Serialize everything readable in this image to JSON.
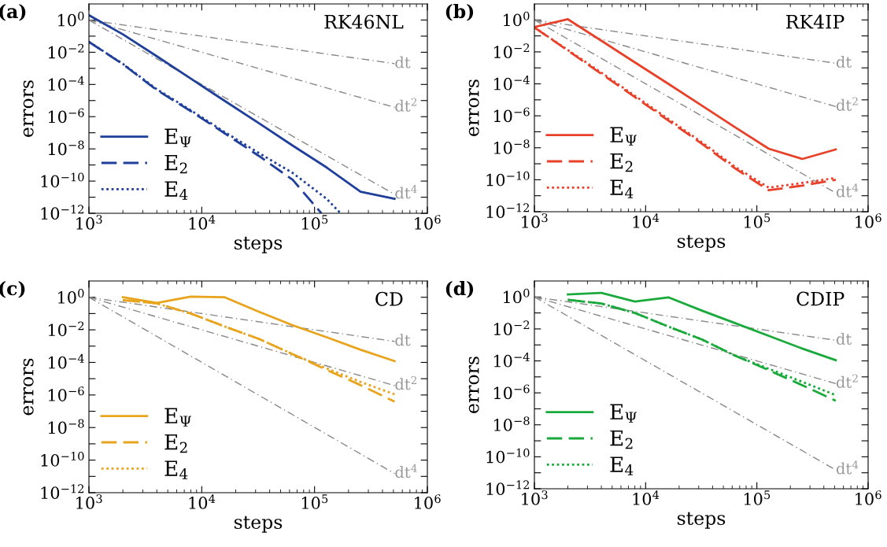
{
  "chart_data": [
    {
      "type": "line",
      "log": "xy",
      "xlabel": "steps",
      "ylabel": "errors",
      "legend": "bottom left",
      "grid": false,
      "xlim": [
        1000,
        1000000
      ],
      "xticks": [
        {
          "value": 1000,
          "label": "10$^{3}$"
        },
        {
          "value": 10000,
          "label": "10$^{4}$"
        },
        {
          "value": 100000,
          "label": "10$^{5}$"
        },
        {
          "value": 1000000,
          "label": "10$^{6}$"
        }
      ],
      "ylim": [
        1e-12,
        10
      ],
      "yticks": [
        {
          "value": 1e-12,
          "label": "10$^{−12}$"
        },
        {
          "value": 1e-11,
          "label": null
        },
        {
          "value": 1e-10,
          "label": "10$^{−10}$"
        },
        {
          "value": 1e-09,
          "label": null
        },
        {
          "value": 1e-08,
          "label": "10$^{−8}$"
        },
        {
          "value": 1e-07,
          "label": null
        },
        {
          "value": 1e-06,
          "label": "10$^{−6}$"
        },
        {
          "value": 1e-05,
          "label": null
        },
        {
          "value": 0.0001,
          "label": "10$^{−4}$"
        },
        {
          "value": 0.001,
          "label": null
        },
        {
          "value": 0.01,
          "label": "10$^{−2}$"
        },
        {
          "value": 0.1,
          "label": null
        },
        {
          "value": 1,
          "label": "10$^{0}$"
        }
      ],
      "x": [
        1000,
        2000,
        4000,
        8000,
        16000,
        32000,
        64000,
        128000,
        256000,
        512000
      ],
      "series": [
        {
          "color": "#888888",
          "line_style": "dashdot",
          "x": [
            1000,
            512000
          ],
          "values": [
            1,
            0.00195
          ]
        },
        {
          "color": "#888888",
          "line_style": "dashdot",
          "x": [
            1000,
            512000
          ],
          "values": [
            1,
            3.8e-06
          ]
        },
        {
          "color": "#888888",
          "line_style": "dashdot",
          "x": [
            1000,
            512000
          ],
          "values": [
            1,
            1.5e-11
          ]
        },
        {
          "name": "E$_{Ψ}$",
          "color": "#1f3f9b",
          "line_style": "solid",
          "values": [
            2,
            0.13,
            0.0056,
            0.00023,
            9.5e-06,
            4e-07,
            1.6e-08,
            7e-10,
            2.2e-11,
            8e-12
          ]
        },
        {
          "name": "E$_{2}$",
          "color": "#1f3f9b",
          "line_style": "dashed",
          "x": [
            1000,
            2000,
            4000,
            8000,
            16000,
            32000,
            64000,
            115000
          ],
          "values": [
            0.044,
            0.0018,
            4.5e-05,
            2.2e-06,
            9.1e-08,
            3.7e-09,
            1.2e-10,
            1e-12
          ]
        },
        {
          "name": "E$_{4}$",
          "color": "#1f3f9b",
          "line_style": "dotted",
          "x": [
            1000,
            2000,
            4000,
            8000,
            16000,
            32000,
            64000,
            128000,
            170000
          ],
          "values": [
            0.044,
            0.0019,
            5e-05,
            2.5e-06,
            1.1e-07,
            5.6e-09,
            3.2e-10,
            7.9e-12,
            1e-12
          ]
        }
      ],
      "annotations": [
        "(a)",
        "RK46NL",
        "dt",
        "dt$^{2}$",
        "dt$^{4}$"
      ]
    },
    {
      "type": "line",
      "log": "xy",
      "xlabel": "steps",
      "ylabel": "errors",
      "legend": "bottom left",
      "grid": false,
      "xlim": [
        1000,
        1000000
      ],
      "xticks": [
        {
          "value": 1000,
          "label": "10$^{3}$"
        },
        {
          "value": 10000,
          "label": "10$^{4}$"
        },
        {
          "value": 100000,
          "label": "10$^{5}$"
        },
        {
          "value": 1000000,
          "label": "10$^{6}$"
        }
      ],
      "ylim": [
        1e-12,
        10
      ],
      "yticks": [
        {
          "value": 1e-12,
          "label": "10$^{−12}$"
        },
        {
          "value": 1e-11,
          "label": null
        },
        {
          "value": 1e-10,
          "label": "10$^{−10}$"
        },
        {
          "value": 1e-09,
          "label": null
        },
        {
          "value": 1e-08,
          "label": "10$^{−8}$"
        },
        {
          "value": 1e-07,
          "label": null
        },
        {
          "value": 1e-06,
          "label": "10$^{−6}$"
        },
        {
          "value": 1e-05,
          "label": null
        },
        {
          "value": 0.0001,
          "label": "10$^{−4}$"
        },
        {
          "value": 0.001,
          "label": null
        },
        {
          "value": 0.01,
          "label": "10$^{−2}$"
        },
        {
          "value": 0.1,
          "label": null
        },
        {
          "value": 1,
          "label": "10$^{0}$"
        }
      ],
      "x": [
        1000,
        2000,
        4000,
        8000,
        16000,
        32000,
        64000,
        128000,
        256000,
        512000
      ],
      "series": [
        {
          "color": "#888888",
          "line_style": "dashdot",
          "x": [
            1000,
            512000
          ],
          "values": [
            1,
            0.00195
          ]
        },
        {
          "color": "#888888",
          "line_style": "dashdot",
          "x": [
            1000,
            512000
          ],
          "values": [
            1,
            3.8e-06
          ]
        },
        {
          "color": "#888888",
          "line_style": "dashdot",
          "x": [
            1000,
            512000
          ],
          "values": [
            1,
            1.5e-11
          ]
        },
        {
          "name": "E$_{Ψ}$",
          "color": "#e8412a",
          "line_style": "solid",
          "values": [
            0.36,
            1.1,
            0.05,
            0.0022,
            0.0001,
            4.4e-06,
            1.9e-07,
            8.7e-09,
            2e-09,
            7.9e-09
          ]
        },
        {
          "name": "E$_{2}$",
          "color": "#e8412a",
          "line_style": "dashed",
          "values": [
            0.34,
            0.012,
            0.00042,
            1.5e-05,
            5.1e-07,
            1.8e-08,
            5e-10,
            2.2e-11,
            4.3e-11,
            1e-10
          ]
        },
        {
          "name": "E$_{4}$",
          "color": "#e8412a",
          "line_style": "dotted",
          "values": [
            0.34,
            0.013,
            0.0005,
            1.8e-05,
            6.3e-07,
            2.2e-08,
            6.3e-10,
            3.2e-11,
            6.3e-11,
            1.3e-10
          ]
        }
      ],
      "annotations": [
        "(b)",
        "RK4IP",
        "dt",
        "dt$^{2}$",
        "dt$^{4}$"
      ]
    },
    {
      "type": "line",
      "log": "xy",
      "xlabel": "steps",
      "ylabel": "errors",
      "legend": "bottom left",
      "grid": false,
      "xlim": [
        1000,
        1000000
      ],
      "xticks": [
        {
          "value": 1000,
          "label": "10$^{3}$"
        },
        {
          "value": 10000,
          "label": "10$^{4}$"
        },
        {
          "value": 100000,
          "label": "10$^{5}$"
        },
        {
          "value": 1000000,
          "label": "10$^{6}$"
        }
      ],
      "ylim": [
        1e-12,
        10
      ],
      "yticks": [
        {
          "value": 1e-12,
          "label": "10$^{−12}$"
        },
        {
          "value": 1e-11,
          "label": null
        },
        {
          "value": 1e-10,
          "label": "10$^{−10}$"
        },
        {
          "value": 1e-09,
          "label": null
        },
        {
          "value": 1e-08,
          "label": "10$^{−8}$"
        },
        {
          "value": 1e-07,
          "label": null
        },
        {
          "value": 1e-06,
          "label": "10$^{−6}$"
        },
        {
          "value": 1e-05,
          "label": null
        },
        {
          "value": 0.0001,
          "label": "10$^{−4}$"
        },
        {
          "value": 0.001,
          "label": null
        },
        {
          "value": 0.01,
          "label": "10$^{−2}$"
        },
        {
          "value": 0.1,
          "label": null
        },
        {
          "value": 1,
          "label": "10$^{0}$"
        }
      ],
      "x": [
        2000,
        4000,
        8000,
        16000,
        32000,
        64000,
        128000,
        256000,
        512000
      ],
      "series": [
        {
          "color": "#888888",
          "line_style": "dashdot",
          "x": [
            1000,
            512000
          ],
          "values": [
            1,
            0.00195
          ]
        },
        {
          "color": "#888888",
          "line_style": "dashdot",
          "x": [
            1000,
            512000
          ],
          "values": [
            1,
            3.8e-06
          ]
        },
        {
          "color": "#888888",
          "line_style": "dashdot",
          "x": [
            1000,
            512000
          ],
          "values": [
            1,
            1.5e-11
          ]
        },
        {
          "name": "E$_{Ψ}$",
          "color": "#e8a41c",
          "line_style": "solid",
          "values": [
            1.0,
            0.45,
            1.1,
            1.0,
            0.13,
            0.019,
            0.0035,
            0.0006,
            0.00012
          ]
        },
        {
          "name": "E$_{2}$",
          "color": "#e8a41c",
          "line_style": "dashed",
          "values": [
            0.67,
            0.42,
            0.1,
            0.016,
            0.0028,
            0.00032,
            3.5e-05,
            4e-06,
            3.9e-07
          ]
        },
        {
          "name": "E$_{4}$",
          "color": "#e8a41c",
          "line_style": "dotted",
          "values": [
            0.67,
            0.42,
            0.1,
            0.016,
            0.0028,
            0.00032,
            4.3e-05,
            6.3e-06,
            1.1e-06
          ]
        }
      ],
      "annotations": [
        "(c)",
        "CD",
        "dt",
        "dt$^{2}$",
        "dt$^{4}$"
      ]
    },
    {
      "type": "line",
      "log": "xy",
      "xlabel": "steps",
      "ylabel": "errors",
      "legend": "bottom left",
      "grid": false,
      "xlim": [
        1000,
        1000000
      ],
      "xticks": [
        {
          "value": 1000,
          "label": "10$^{3}$"
        },
        {
          "value": 10000,
          "label": "10$^{4}$"
        },
        {
          "value": 100000,
          "label": "10$^{5}$"
        },
        {
          "value": 1000000,
          "label": "10$^{6}$"
        }
      ],
      "ylim": [
        1e-12,
        10
      ],
      "yticks": [
        {
          "value": 1e-12,
          "label": "10$^{−12}$"
        },
        {
          "value": 1e-11,
          "label": null
        },
        {
          "value": 1e-10,
          "label": "10$^{−10}$"
        },
        {
          "value": 1e-09,
          "label": null
        },
        {
          "value": 1e-08,
          "label": "10$^{−8}$"
        },
        {
          "value": 1e-07,
          "label": null
        },
        {
          "value": 1e-06,
          "label": "10$^{−6}$"
        },
        {
          "value": 1e-05,
          "label": null
        },
        {
          "value": 0.0001,
          "label": "10$^{−4}$"
        },
        {
          "value": 0.001,
          "label": null
        },
        {
          "value": 0.01,
          "label": "10$^{−2}$"
        },
        {
          "value": 0.1,
          "label": null
        },
        {
          "value": 1,
          "label": "10$^{0}$"
        }
      ],
      "x": [
        2000,
        4000,
        8000,
        16000,
        32000,
        64000,
        128000,
        256000,
        512000
      ],
      "series": [
        {
          "color": "#888888",
          "line_style": "dashdot",
          "x": [
            1000,
            512000
          ],
          "values": [
            1,
            0.00195
          ]
        },
        {
          "color": "#888888",
          "line_style": "dashdot",
          "x": [
            1000,
            512000
          ],
          "values": [
            1,
            3.8e-06
          ]
        },
        {
          "color": "#888888",
          "line_style": "dashdot",
          "x": [
            1000,
            512000
          ],
          "values": [
            1,
            1.5e-11
          ]
        },
        {
          "name": "E$_{Ψ}$",
          "color": "#1aaa3c",
          "line_style": "solid",
          "values": [
            1.45,
            1.8,
            0.52,
            0.95,
            0.14,
            0.023,
            0.0037,
            0.00059,
            0.00011
          ]
        },
        {
          "name": "E$_{2}$",
          "color": "#1aaa3c",
          "line_style": "dashed",
          "values": [
            0.66,
            0.39,
            0.1,
            0.014,
            0.0022,
            0.00021,
            2.6e-05,
            3e-06,
            3.2e-07
          ]
        },
        {
          "name": "E$_{4}$",
          "color": "#1aaa3c",
          "line_style": "dotted",
          "values": [
            0.66,
            0.39,
            0.1,
            0.014,
            0.0022,
            0.00021,
            3.2e-05,
            4.9e-06,
            7.2e-07
          ]
        }
      ],
      "annotations": [
        "(d)",
        "CDIP",
        "dt",
        "dt$^{2}$",
        "dt$^{4}$"
      ]
    }
  ]
}
